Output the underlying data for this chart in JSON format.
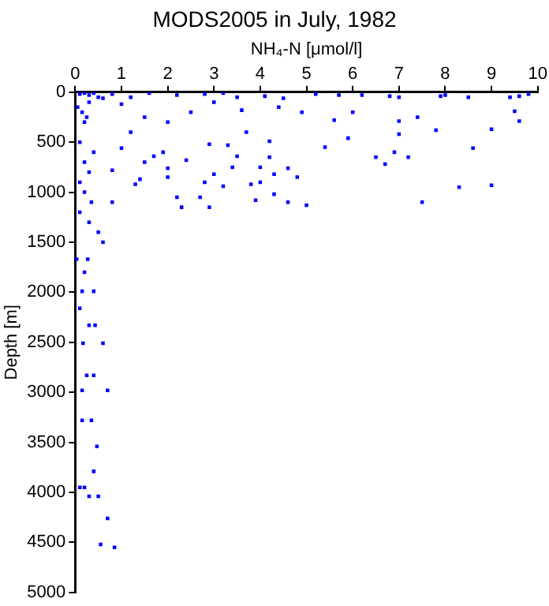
{
  "chart_data": {
    "type": "scatter",
    "title": "MODS2005 in July, 1982",
    "xlabel": "NH₄-N [μmol/l]",
    "ylabel": "Depth [m]",
    "marker": "square",
    "grid": false,
    "legend": false,
    "xlim": [
      0,
      10
    ],
    "xticks": [
      0,
      1,
      2,
      3,
      4,
      5,
      6,
      7,
      8,
      9,
      10
    ],
    "ylim": [
      5000,
      0
    ],
    "yticks": [
      0,
      500,
      1000,
      1500,
      2000,
      2500,
      3000,
      3500,
      4000,
      4500,
      5000
    ],
    "series": [
      {
        "color": "#0000ff",
        "x": [
          9.6,
          9.8,
          9.4,
          9.5,
          9.6,
          9.0,
          9.0,
          8.3,
          8.6,
          8.5,
          8.0,
          7.8,
          7.9,
          7.5,
          7.4,
          7.2,
          7.0,
          7.0,
          7.0,
          6.9,
          6.7,
          6.5,
          6.8,
          6.2,
          6.0,
          5.9,
          5.6,
          5.4,
          5.7,
          5.0,
          4.9,
          4.8,
          4.6,
          4.6,
          4.5,
          4.4,
          4.3,
          4.3,
          4.2,
          4.2,
          4.0,
          3.9,
          4.0,
          3.8,
          3.5,
          3.4,
          3.7,
          3.6,
          3.3,
          3.2,
          3.0,
          2.9,
          2.9,
          2.8,
          2.7,
          2.3,
          2.2,
          2.4,
          2.0,
          2.0,
          1.9,
          1.7,
          1.5,
          1.4,
          1.3,
          1.2,
          1.0,
          0.8,
          0.8,
          1.0,
          1.5,
          2.0,
          2.5,
          3.0,
          3.5,
          1.2,
          0.5,
          0.3,
          0.2,
          0.1,
          0.4,
          0.3,
          0.2,
          0.1,
          0.3,
          0.6,
          0.03,
          0.27,
          0.15,
          0.4,
          0.1,
          0.3,
          0.43,
          0.17,
          0.6,
          0.4,
          0.25,
          0.15,
          0.7,
          0.35,
          0.15,
          0.47,
          0.4,
          0.1,
          0.2,
          0.3,
          0.5,
          0.7,
          0.55,
          0.85,
          0.1,
          0.2,
          0.3,
          0.4,
          0.6,
          0.8,
          1.6,
          2.2,
          2.8,
          3.2,
          4.1,
          5.2,
          0.05,
          0.15,
          0.25,
          0.2,
          0.1,
          0.35,
          0.5,
          0.2
        ],
        "values": [
          40,
          20,
          50,
          190,
          290,
          370,
          930,
          950,
          560,
          50,
          30,
          380,
          40,
          1100,
          250,
          650,
          50,
          290,
          420,
          600,
          720,
          650,
          40,
          30,
          200,
          460,
          280,
          550,
          30,
          1130,
          200,
          850,
          1100,
          760,
          60,
          150,
          820,
          1020,
          490,
          650,
          900,
          1080,
          750,
          920,
          640,
          750,
          400,
          180,
          530,
          940,
          820,
          1150,
          520,
          900,
          1050,
          1150,
          1050,
          680,
          850,
          760,
          600,
          640,
          700,
          870,
          920,
          400,
          560,
          1100,
          780,
          120,
          250,
          300,
          200,
          100,
          50,
          50,
          50,
          100,
          300,
          500,
          600,
          800,
          1000,
          1200,
          1300,
          1500,
          1670,
          1670,
          1990,
          1990,
          2160,
          2330,
          2330,
          2510,
          2510,
          2830,
          2830,
          2980,
          2980,
          3280,
          3280,
          3540,
          3790,
          3950,
          3950,
          4040,
          4040,
          4260,
          4520,
          4550,
          20,
          10,
          30,
          10,
          60,
          20,
          10,
          30,
          20,
          10,
          40,
          20,
          150,
          200,
          250,
          700,
          900,
          1100,
          1400,
          1800
        ]
      }
    ]
  }
}
